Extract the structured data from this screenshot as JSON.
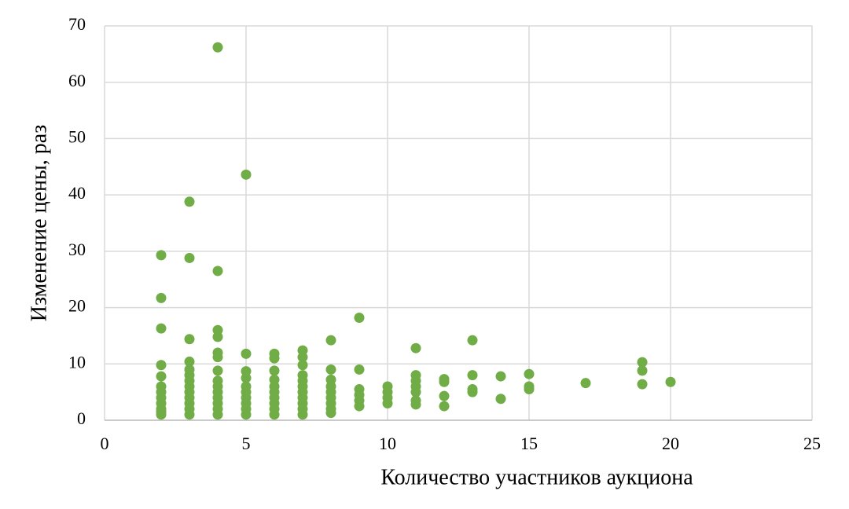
{
  "chart_data": {
    "type": "scatter",
    "xlabel": "Количество участников аукциона",
    "ylabel": "Изменение цены, раз",
    "color": "#70ad47",
    "grid": true,
    "xlim": [
      0,
      25
    ],
    "xticks": [
      0,
      5,
      10,
      15,
      20,
      25
    ],
    "ylim": [
      0,
      70
    ],
    "yticks": [
      0,
      10,
      20,
      30,
      40,
      50,
      60,
      70
    ],
    "x": [
      2,
      2,
      2,
      2,
      2,
      2,
      2,
      2,
      2,
      2,
      2,
      2,
      3,
      3,
      3,
      3,
      3,
      3,
      3,
      3,
      3,
      3,
      3,
      3,
      3,
      4,
      4,
      4,
      4,
      4,
      4,
      4,
      4,
      4,
      4,
      4,
      4,
      4,
      4,
      5,
      5,
      5,
      5,
      5,
      5,
      5,
      5,
      5,
      5,
      6,
      6,
      6,
      6,
      6,
      6,
      6,
      6,
      6,
      6,
      7,
      7,
      7,
      7,
      7,
      7,
      7,
      7,
      7,
      7,
      7,
      8,
      8,
      8,
      8,
      8,
      8,
      8,
      8,
      8,
      9,
      9,
      9,
      9,
      9,
      9,
      10,
      10,
      10,
      10,
      11,
      11,
      11,
      11,
      11,
      11,
      11,
      12,
      12,
      12,
      12,
      13,
      13,
      13,
      13,
      14,
      14,
      15,
      15,
      15,
      17,
      19,
      19,
      19,
      20
    ],
    "values": [
      29.3,
      21.7,
      16.3,
      9.8,
      7.8,
      6,
      5,
      4,
      3,
      2,
      1.5,
      1,
      38.8,
      28.8,
      14.4,
      10.4,
      9,
      8,
      7,
      6,
      5,
      4,
      3,
      2,
      1,
      66.2,
      26.5,
      16,
      14.8,
      12,
      11.2,
      8.8,
      7,
      6,
      5,
      4,
      3,
      2,
      1,
      43.6,
      11.8,
      8.7,
      7.5,
      6,
      5,
      4,
      3,
      2,
      1,
      11.8,
      11,
      8.8,
      7.2,
      6,
      5,
      4,
      3,
      2,
      1,
      12.4,
      11.2,
      9.8,
      8,
      7,
      6,
      5,
      4,
      3,
      2,
      1,
      14.2,
      9,
      7.2,
      6,
      5,
      4,
      3,
      2,
      1.3,
      18.2,
      9,
      5.5,
      4.5,
      3.5,
      2.5,
      6,
      5,
      4,
      3,
      12.8,
      8,
      7,
      6,
      5,
      3.5,
      2.8,
      7.3,
      6.8,
      4.3,
      2.5,
      14.2,
      8,
      5.5,
      5,
      7.8,
      3.8,
      8.2,
      6,
      5.5,
      6.6,
      10.3,
      8.8,
      6.4,
      6.8
    ]
  }
}
